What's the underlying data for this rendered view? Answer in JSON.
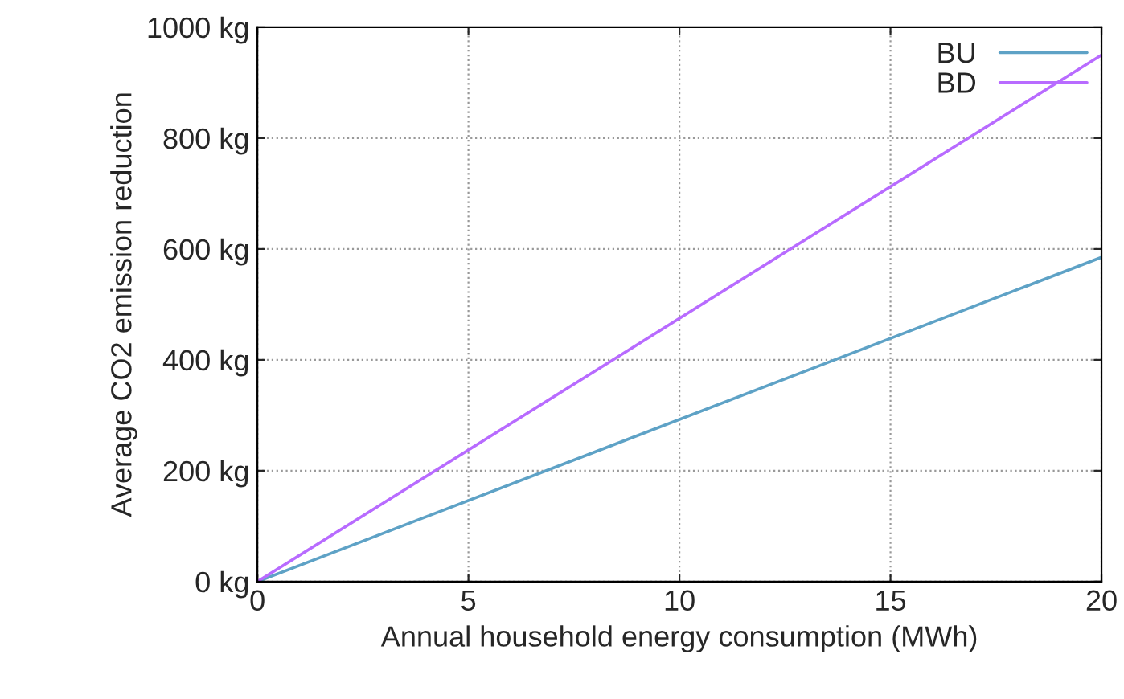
{
  "chart_data": {
    "type": "line",
    "xlabel": "Annual household energy consumption (MWh)",
    "ylabel": "Average CO2 emission reduction",
    "x": [
      0,
      20
    ],
    "series": [
      {
        "name": "BU",
        "color": "#5ea2c6",
        "values": [
          0,
          585
        ]
      },
      {
        "name": "BD",
        "color": "#b86bff",
        "values": [
          0,
          950
        ]
      }
    ],
    "xlim": [
      0,
      20
    ],
    "xticks": [
      0,
      5,
      10,
      15,
      20
    ],
    "ylim": [
      0,
      1000
    ],
    "yticks": [
      {
        "value": 0,
        "label": "0 kg"
      },
      {
        "value": 200,
        "label": "200 kg"
      },
      {
        "value": 400,
        "label": "400 kg"
      },
      {
        "value": 600,
        "label": "600 kg"
      },
      {
        "value": 800,
        "label": "800 kg"
      },
      {
        "value": 1000,
        "label": "1000 kg"
      }
    ],
    "grid": true,
    "legend": "top right",
    "line_style": "solid",
    "marker": "none"
  }
}
